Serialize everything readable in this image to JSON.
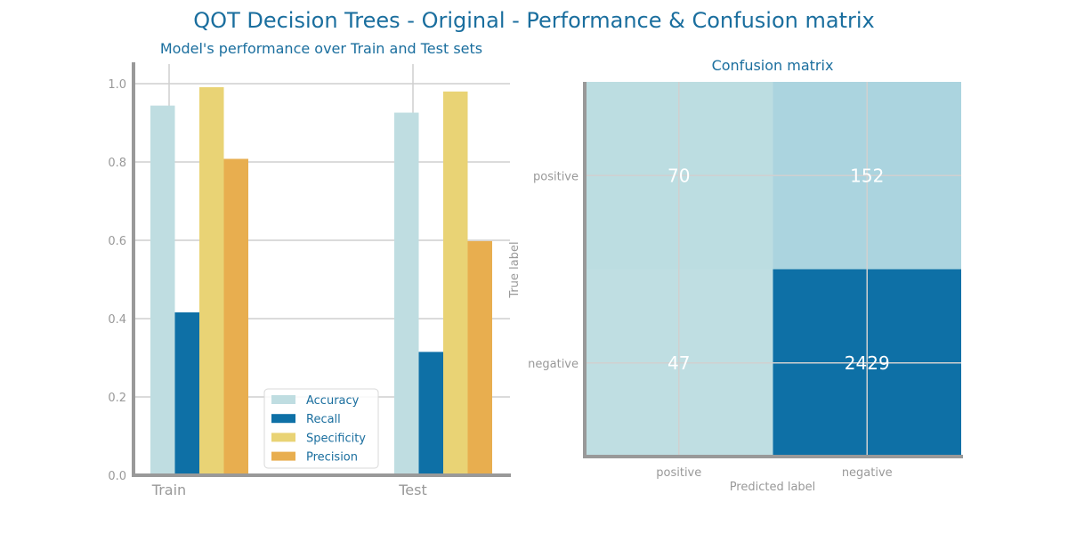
{
  "figure": {
    "title": "QOT Decision Trees - Original - Performance & Confusion matrix"
  },
  "chart_data": [
    {
      "type": "bar",
      "title": "Model's performance over Train and Test sets",
      "categories": [
        "Train",
        "Test"
      ],
      "series": [
        {
          "name": "Accuracy",
          "values": [
            0.944,
            0.926
          ],
          "color": "#bfdde1"
        },
        {
          "name": "Recall",
          "values": [
            0.416,
            0.315
          ],
          "color": "#0e70a6"
        },
        {
          "name": "Specificity",
          "values": [
            0.991,
            0.98
          ],
          "color": "#e9d375"
        },
        {
          "name": "Precision",
          "values": [
            0.808,
            0.598
          ],
          "color": "#e8ae4f"
        }
      ],
      "ylim": [
        0,
        1.05
      ],
      "yticks": [
        "0.0",
        "0.2",
        "0.4",
        "0.6",
        "0.8",
        "1.0"
      ],
      "grid": true,
      "legend_position": "lower-center"
    },
    {
      "type": "heatmap",
      "title": "Confusion matrix",
      "xlabel": "Predicted label",
      "ylabel": "True label",
      "x_categories": [
        "positive",
        "negative"
      ],
      "y_categories": [
        "positive",
        "negative"
      ],
      "values": [
        [
          70,
          152
        ],
        [
          47,
          2429
        ]
      ],
      "cell_colors": [
        [
          "#bcdde1",
          "#abd4df"
        ],
        [
          "#bfdee2",
          "#0e70a6"
        ]
      ],
      "grid": true
    }
  ]
}
